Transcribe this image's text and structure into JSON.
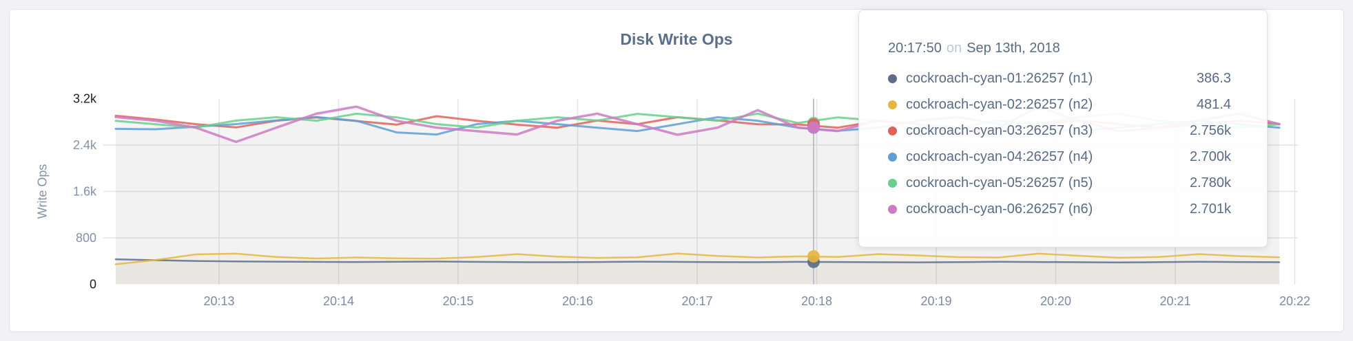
{
  "chart_data": {
    "type": "line",
    "title": "Disk Write Ops",
    "ylabel": "Write Ops",
    "xlabel": "",
    "ylim": [
      0,
      3200
    ],
    "grid": true,
    "legend_position": "tooltip-only",
    "x_ticks": [
      "20:13",
      "20:14",
      "20:15",
      "20:16",
      "20:17",
      "20:18",
      "20:19",
      "20:20",
      "20:21",
      "20:22"
    ],
    "y_ticks": [
      {
        "value": 0,
        "label": "0",
        "emphasis": true
      },
      {
        "value": 800,
        "label": "800",
        "emphasis": false
      },
      {
        "value": 1600,
        "label": "1.6k",
        "emphasis": false
      },
      {
        "value": 2400,
        "label": "2.4k",
        "emphasis": false
      },
      {
        "value": 3200,
        "label": "3.2k",
        "emphasis": true
      }
    ],
    "series": [
      {
        "id": "n1",
        "name": "cockroach-cyan-01:26257 (n1)",
        "color": "#5d6c88",
        "line_width": 2.5,
        "fill_opacity": 0.05,
        "values": [
          432,
          415,
          402,
          394,
          390,
          386,
          384,
          388,
          392,
          386,
          382,
          380,
          384,
          390,
          386,
          382,
          380,
          386,
          384,
          380,
          378,
          382,
          388,
          384,
          380,
          376,
          382,
          388,
          384,
          380
        ]
      },
      {
        "id": "n2",
        "name": "cockroach-cyan-02:26257 (n2)",
        "color": "#e7b63e",
        "line_width": 2.5,
        "fill_opacity": 0.055,
        "values": [
          345,
          420,
          515,
          528,
          470,
          445,
          462,
          448,
          442,
          470,
          520,
          478,
          455,
          465,
          530,
          490,
          462,
          481,
          470,
          520,
          498,
          468,
          462,
          528,
          492,
          458,
          472,
          520,
          486,
          465
        ]
      },
      {
        "id": "n3",
        "name": "cockroach-cyan-03:26257 (n3)",
        "color": "#e0635a",
        "line_width": 3,
        "fill_opacity": 0.03,
        "values": [
          2905,
          2840,
          2760,
          2705,
          2820,
          2878,
          2815,
          2752,
          2898,
          2818,
          2752,
          2700,
          2822,
          2760,
          2880,
          2826,
          2758,
          2756,
          2700,
          2818,
          2762,
          2700,
          2645,
          2760,
          2825,
          2762,
          2700,
          2758,
          2820,
          2765
        ]
      },
      {
        "id": "n4",
        "name": "cockroach-cyan-04:26257 (n4)",
        "color": "#5f9fd6",
        "line_width": 3,
        "fill_opacity": 0.03,
        "values": [
          2680,
          2672,
          2716,
          2762,
          2825,
          2882,
          2818,
          2618,
          2582,
          2762,
          2818,
          2762,
          2700,
          2642,
          2760,
          2880,
          2820,
          2700,
          2645,
          2700,
          2822,
          2880,
          2760,
          2700,
          2642,
          2702,
          2762,
          2818,
          2760,
          2700
        ]
      },
      {
        "id": "n5",
        "name": "cockroach-cyan-05:26257 (n5)",
        "color": "#69d08c",
        "line_width": 3,
        "fill_opacity": 0.03,
        "values": [
          2818,
          2758,
          2702,
          2822,
          2880,
          2820,
          2940,
          2878,
          2760,
          2702,
          2820,
          2880,
          2822,
          2938,
          2880,
          2820,
          2942,
          2780,
          2878,
          2820,
          2760,
          2702,
          2818,
          2760,
          2882,
          2940,
          2818,
          2760,
          2700,
          2758
        ]
      },
      {
        "id": "n6",
        "name": "cockroach-cyan-06:26257 (n6)",
        "color": "#cd7bc4",
        "line_width": 3.5,
        "fill_opacity": 0.03,
        "values": [
          2882,
          2820,
          2700,
          2455,
          2700,
          2940,
          3062,
          2818,
          2700,
          2640,
          2582,
          2820,
          2942,
          2760,
          2578,
          2700,
          3002,
          2701,
          2642,
          2818,
          2760,
          2580,
          2700,
          3060,
          2820,
          2640,
          2700,
          2822,
          2940,
          2760
        ]
      }
    ],
    "hover": {
      "time_label": "20:17:50",
      "values": [
        386.3,
        481.4,
        2756,
        2700,
        2780,
        2701
      ],
      "dot_draw_order": [
        4,
        3,
        2,
        5,
        0,
        1
      ]
    }
  },
  "tooltip": {
    "time": "20:17:50",
    "on_word": "on",
    "date": "Sep 13th, 2018",
    "rows": [
      {
        "label": "cockroach-cyan-01:26257 (n1)",
        "value": "386.3"
      },
      {
        "label": "cockroach-cyan-02:26257 (n2)",
        "value": "481.4"
      },
      {
        "label": "cockroach-cyan-03:26257 (n3)",
        "value": "2.756k"
      },
      {
        "label": "cockroach-cyan-04:26257 (n4)",
        "value": "2.700k"
      },
      {
        "label": "cockroach-cyan-05:26257 (n5)",
        "value": "2.780k"
      },
      {
        "label": "cockroach-cyan-06:26257 (n6)",
        "value": "2.701k"
      }
    ]
  },
  "colors": {
    "title_text": "#5b6e8c",
    "axis_text": "#8591a8",
    "axis_text_emphasis": "#1d1d28",
    "x_tick_text": "#7e89a1",
    "grid_line": "#e4e4e8",
    "hover_line": "#bfbfc6",
    "tooltip_text": "#5a6b87",
    "tooltip_on_word": "#c2c6ce"
  }
}
